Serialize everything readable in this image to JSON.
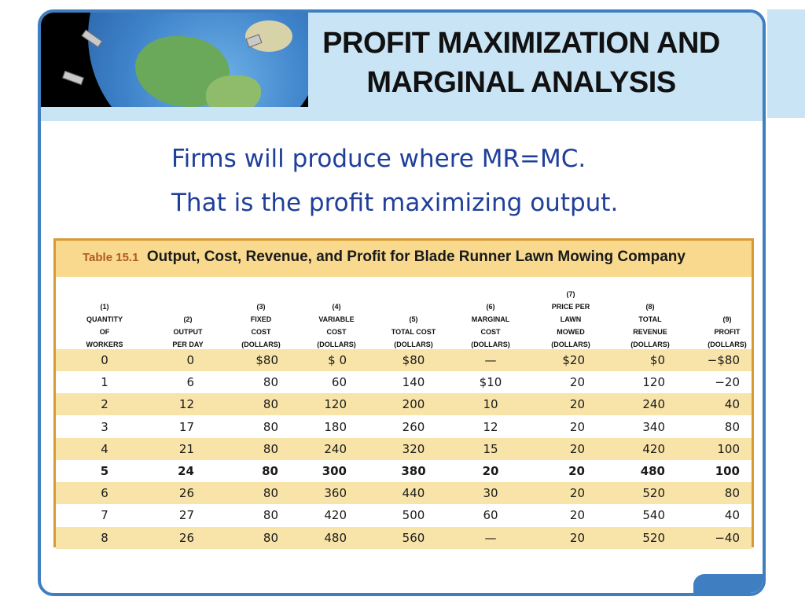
{
  "slide": {
    "title_line1": "PROFIT MAXIMIZATION AND",
    "title_line2": "MARGINAL ANALYSIS",
    "bullet1": "Firms will produce where MR=MC.",
    "bullet2": "That is the profit maximizing output."
  },
  "table": {
    "number": "Table 15.1",
    "title": "Output, Cost, Revenue, and Profit for Blade Runner Lawn Mowing Company",
    "columns": [
      [
        "(1)",
        "QUANTITY",
        "OF",
        "WORKERS"
      ],
      [
        "(2)",
        "OUTPUT",
        "PER DAY"
      ],
      [
        "(3)",
        "FIXED",
        "COST",
        "(DOLLARS)"
      ],
      [
        "(4)",
        "VARIABLE",
        "COST",
        "(DOLLARS)"
      ],
      [
        "(5)",
        "TOTAL COST",
        "(DOLLARS)"
      ],
      [
        "(6)",
        "MARGINAL",
        "COST",
        "(DOLLARS)"
      ],
      [
        "(7)",
        "PRICE PER",
        "LAWN",
        "MOWED",
        "(DOLLARS)"
      ],
      [
        "(8)",
        "TOTAL",
        "REVENUE",
        "(DOLLARS)"
      ],
      [
        "(9)",
        "PROFIT",
        "(DOLLARS)"
      ]
    ],
    "rows": [
      [
        "0",
        "0",
        "$80",
        "$ 0",
        "$80",
        "—",
        "$20",
        "$0",
        "−$80"
      ],
      [
        "1",
        "6",
        "80",
        "60",
        "140",
        "$10",
        "20",
        "120",
        "−20"
      ],
      [
        "2",
        "12",
        "80",
        "120",
        "200",
        "10",
        "20",
        "240",
        "40"
      ],
      [
        "3",
        "17",
        "80",
        "180",
        "260",
        "12",
        "20",
        "340",
        "80"
      ],
      [
        "4",
        "21",
        "80",
        "240",
        "320",
        "15",
        "20",
        "420",
        "100"
      ],
      [
        "5",
        "24",
        "80",
        "300",
        "380",
        "20",
        "20",
        "480",
        "100"
      ],
      [
        "6",
        "26",
        "80",
        "360",
        "440",
        "30",
        "20",
        "520",
        "80"
      ],
      [
        "7",
        "27",
        "80",
        "420",
        "500",
        "60",
        "20",
        "540",
        "40"
      ],
      [
        "8",
        "26",
        "80",
        "480",
        "560",
        "—",
        "20",
        "520",
        "−40"
      ]
    ],
    "highlighted_row": 5
  },
  "colors": {
    "frame": "#3f7fc1",
    "header_band": "#c8e4f5",
    "bullet_text": "#1f3f9a",
    "table_border": "#d89a32",
    "table_header": "#f8d98e",
    "row_shade": "#f8e4a8"
  },
  "icons": {
    "header_image": "globe-illustration"
  }
}
